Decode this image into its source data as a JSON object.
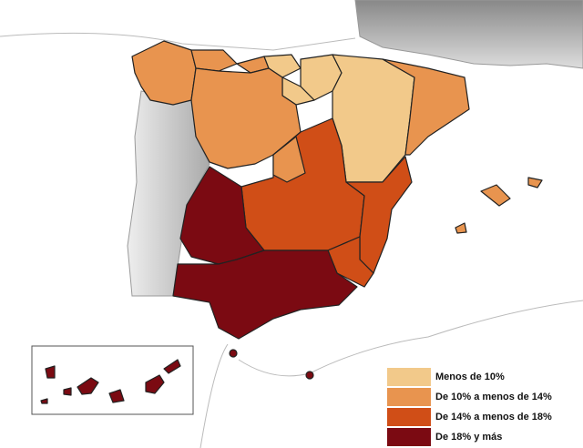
{
  "legend": {
    "items": [
      {
        "label": "Menos de 10%",
        "color": "#f2c98a"
      },
      {
        "label": "De 10% a menos de 14%",
        "color": "#e8944f"
      },
      {
        "label": "De 14% a menos de 18%",
        "color": "#d04e17"
      },
      {
        "label": "De 18% y más",
        "color": "#7b0a12"
      }
    ]
  }
}
